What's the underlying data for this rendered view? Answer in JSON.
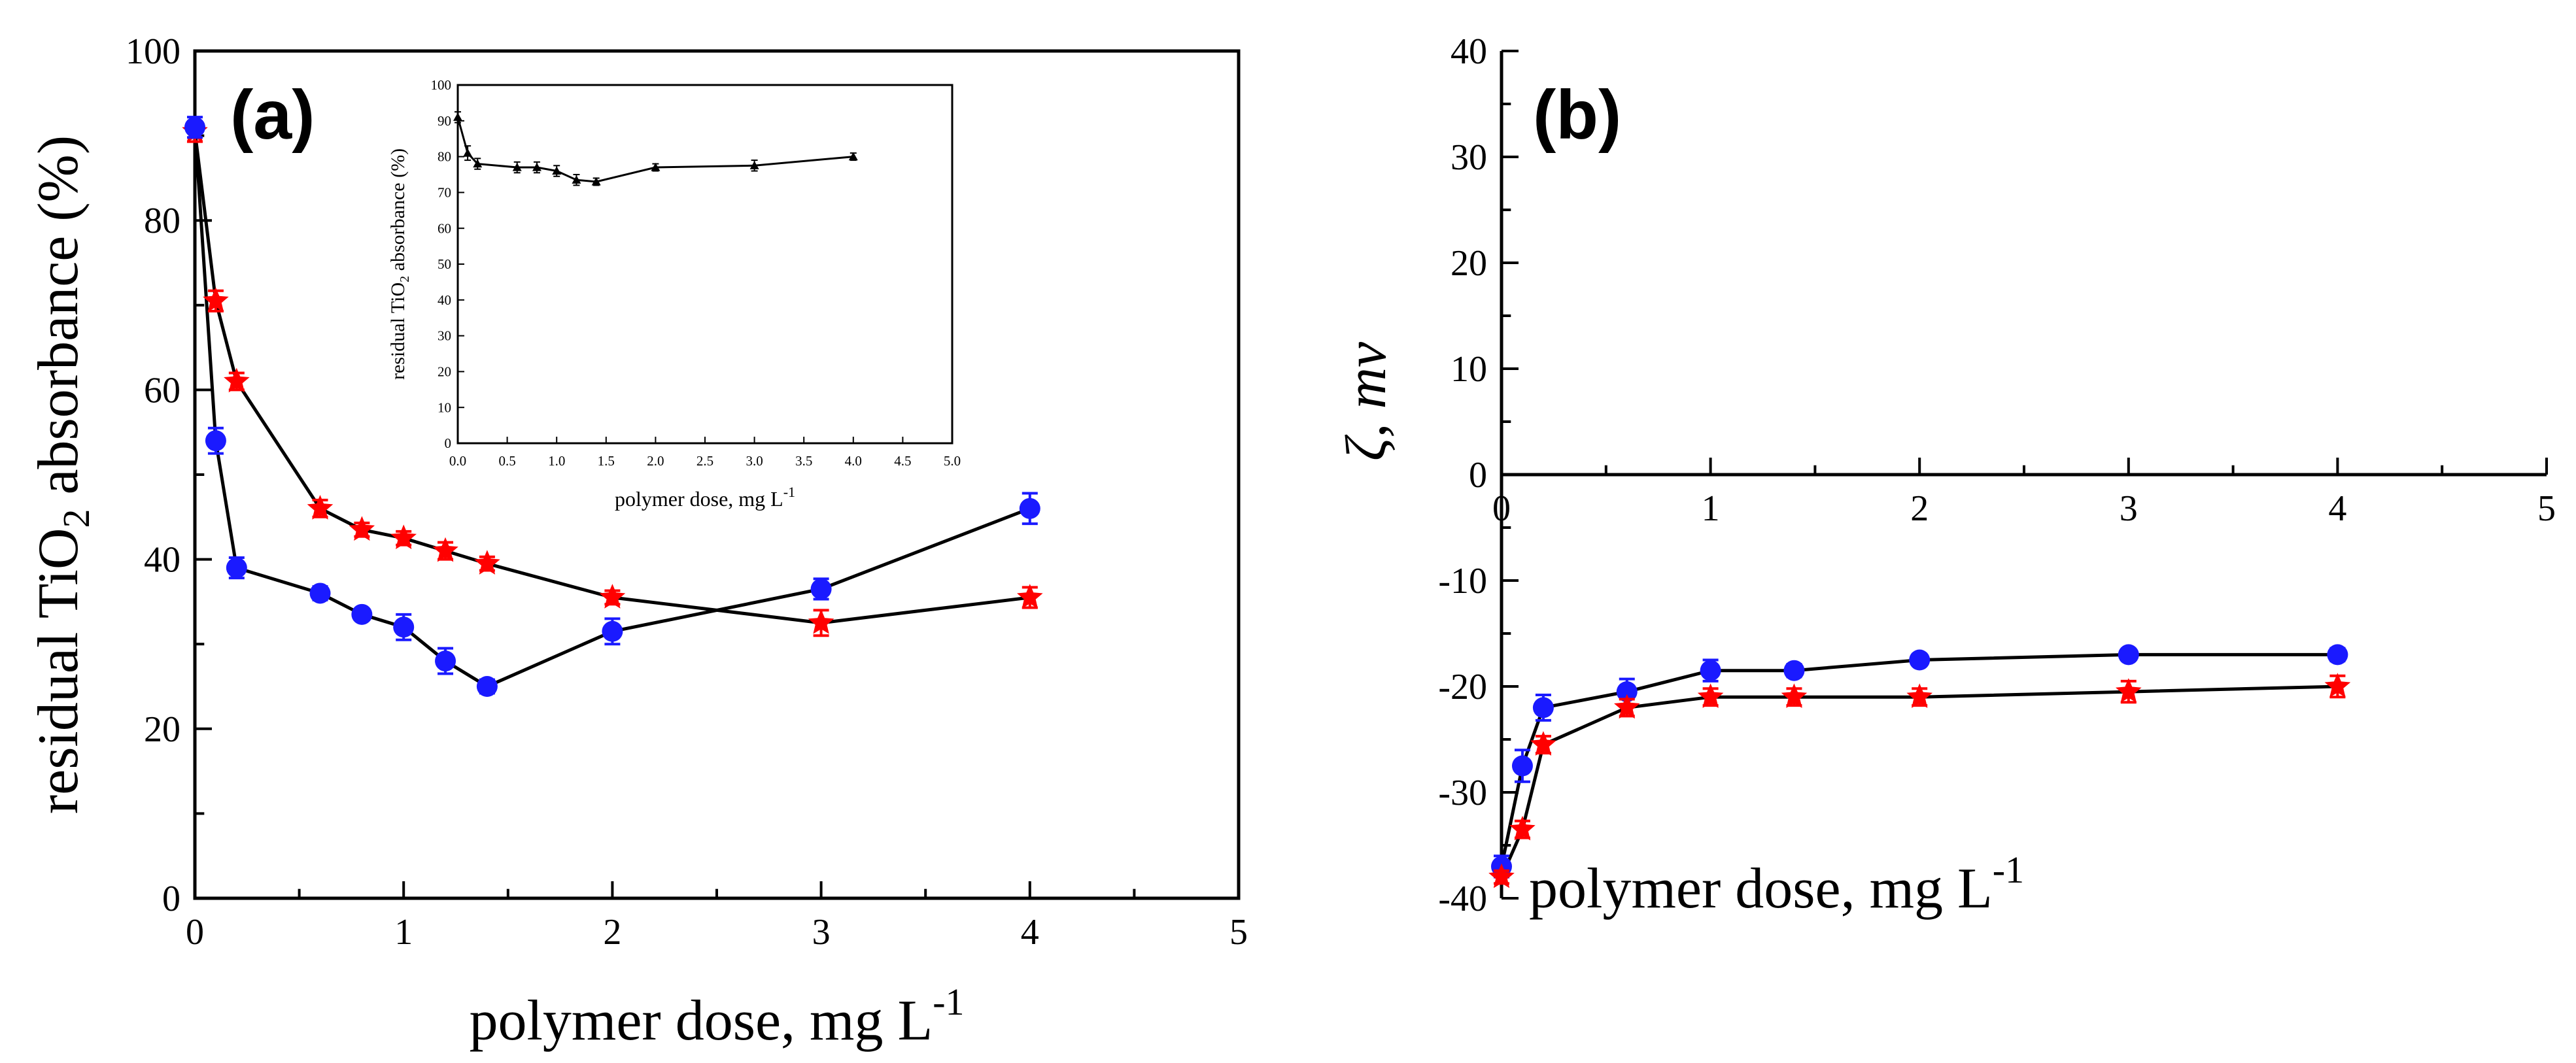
{
  "chart_data": [
    {
      "id": "a",
      "type": "line",
      "panel_label": "(a)",
      "xlabel": "polymer dose, mg L",
      "xlabel_sup": "-1",
      "ylabel_pre": "residual TiO",
      "ylabel_sub": "2",
      "ylabel_post": " absorbance (%)",
      "xlim": [
        0,
        5
      ],
      "ylim": [
        0,
        100
      ],
      "x_ticks": [
        "0",
        "1",
        "2",
        "3",
        "4",
        "5"
      ],
      "y_ticks": [
        "0",
        "20",
        "40",
        "60",
        "80",
        "100"
      ],
      "colors": {
        "series_star": "#ff0000",
        "series_circle": "#1a1aff",
        "line": "#000000"
      },
      "series": [
        {
          "name": "star",
          "marker": "star",
          "x": [
            0,
            0.1,
            0.2,
            0.6,
            0.8,
            1.0,
            1.2,
            1.4,
            2.0,
            3.0,
            4.0
          ],
          "y": [
            90.5,
            70.5,
            61,
            46,
            43.5,
            42.5,
            41,
            39.5,
            35.5,
            32.5,
            35.5
          ],
          "err": [
            1.2,
            1.2,
            1.0,
            1.0,
            0.8,
            0.8,
            1.0,
            0.8,
            0.8,
            1.5,
            1.2
          ]
        },
        {
          "name": "circle",
          "marker": "circle",
          "x": [
            0,
            0.1,
            0.2,
            0.6,
            0.8,
            1.0,
            1.2,
            1.4,
            2.0,
            3.0,
            4.0
          ],
          "y": [
            91,
            54,
            39,
            36,
            33.5,
            32,
            28,
            25,
            31.5,
            36.5,
            46
          ],
          "err": [
            1.2,
            1.5,
            1.2,
            0.8,
            0.5,
            1.5,
            1.5,
            0.8,
            1.5,
            1.2,
            1.8
          ]
        }
      ],
      "inset": {
        "type": "line",
        "xlabel": "polymer dose, mg L",
        "xlabel_sup": "-1",
        "ylabel_pre": "residual TiO",
        "ylabel_sub": "2",
        "ylabel_post": " absorbance (%)",
        "xlim": [
          0,
          5
        ],
        "ylim": [
          0,
          100
        ],
        "x_ticks": [
          "0.0",
          "0.5",
          "1.0",
          "1.5",
          "2.0",
          "2.5",
          "3.0",
          "3.5",
          "4.0",
          "4.5",
          "5.0"
        ],
        "y_ticks": [
          "0",
          "10",
          "20",
          "30",
          "40",
          "50",
          "60",
          "70",
          "80",
          "90",
          "100"
        ],
        "series": [
          {
            "name": "triangle",
            "marker": "triangle",
            "x": [
              0,
              0.1,
              0.2,
              0.6,
              0.8,
              1.0,
              1.2,
              1.4,
              2.0,
              3.0,
              4.0
            ],
            "y": [
              91,
              81,
              78,
              77,
              77,
              76,
              73.5,
              73,
              77,
              77.5,
              80
            ],
            "err": [
              1.5,
              2.0,
              1.5,
              1.5,
              1.5,
              1.5,
              1.5,
              1.0,
              1.0,
              1.5,
              1.0
            ]
          }
        ]
      }
    },
    {
      "id": "b",
      "type": "line",
      "panel_label": "(b)",
      "xlabel": "polymer dose, mg L",
      "xlabel_sup": "-1",
      "ylabel": "ζ, mv",
      "xlim": [
        0,
        5
      ],
      "ylim": [
        -40,
        40
      ],
      "x_ticks": [
        "0",
        "1",
        "2",
        "3",
        "4",
        "5"
      ],
      "y_ticks": [
        "-40",
        "-30",
        "-20",
        "-10",
        "0",
        "10",
        "20",
        "30",
        "40"
      ],
      "series": [
        {
          "name": "circle",
          "marker": "circle",
          "x": [
            0,
            0.1,
            0.2,
            0.6,
            1.0,
            1.4,
            2.0,
            3.0,
            4.0
          ],
          "y": [
            -37,
            -27.5,
            -22,
            -20.5,
            -18.5,
            -18.5,
            -17.5,
            -17,
            -17
          ],
          "err": [
            1.0,
            1.5,
            1.2,
            1.2,
            1.0,
            0.6,
            0.5,
            0.5,
            0.6
          ]
        },
        {
          "name": "star",
          "marker": "star",
          "x": [
            0,
            0.1,
            0.2,
            0.6,
            1.0,
            1.4,
            2.0,
            3.0,
            4.0
          ],
          "y": [
            -38,
            -33.5,
            -25.5,
            -22,
            -21,
            -21,
            -21,
            -20.5,
            -20
          ],
          "err": [
            0.6,
            0.8,
            0.8,
            0.8,
            0.8,
            0.8,
            0.8,
            1.0,
            1.0
          ]
        }
      ]
    }
  ]
}
